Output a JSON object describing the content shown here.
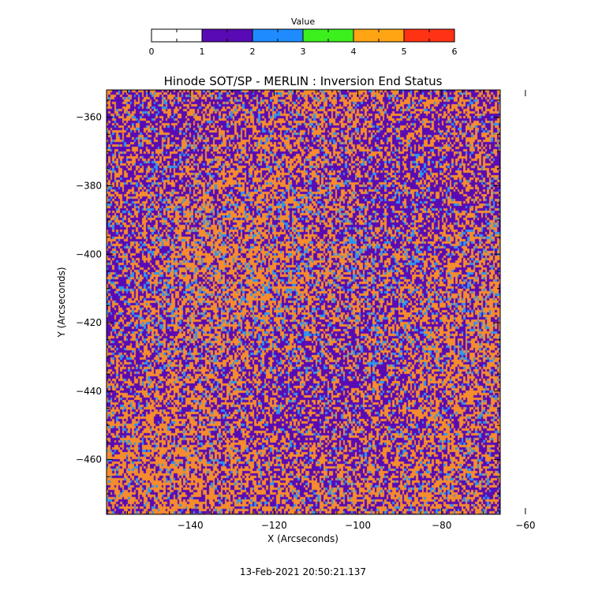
{
  "chart_data": {
    "type": "heatmap",
    "title": "Hinode SOT/SP - MERLIN : Inversion End Status",
    "xlabel": "X (Arcseconds)",
    "ylabel": "Y (Arcseconds)",
    "xlim": [
      -160,
      -66
    ],
    "ylim": [
      -476,
      -352
    ],
    "x_ticks": [
      -140,
      -120,
      -100,
      -80,
      -60
    ],
    "y_ticks": [
      -360,
      -380,
      -400,
      -420,
      -440,
      -460
    ],
    "x_tick_labels": [
      "−140",
      "−120",
      "−100",
      "−80",
      "−60"
    ],
    "y_tick_labels": [
      "−360",
      "−380",
      "−400",
      "−420",
      "−440",
      "−460"
    ],
    "dominant_values": [
      {
        "value": 1.5,
        "share": 0.44
      },
      {
        "value": 2.5,
        "share": 0.09
      },
      {
        "value": 4.5,
        "share": 0.47
      }
    ],
    "colorbar": {
      "title": "Value",
      "range": [
        0,
        6
      ],
      "ticks": [
        0,
        1,
        2,
        3,
        4,
        5,
        6
      ],
      "tick_labels": [
        "0",
        "1",
        "2",
        "3",
        "4",
        "5",
        "6"
      ],
      "bins": [
        {
          "range": [
            0,
            1
          ],
          "color": "#ffffff"
        },
        {
          "range": [
            1,
            2
          ],
          "color": "#5a0ab4"
        },
        {
          "range": [
            2,
            3
          ],
          "color": "#1e8cff"
        },
        {
          "range": [
            3,
            4
          ],
          "color": "#3cf01e"
        },
        {
          "range": [
            4,
            5
          ],
          "color": "#ffa514"
        },
        {
          "range": [
            5,
            6
          ],
          "color": "#ff3214"
        }
      ]
    },
    "colors": {
      "purple": "#5a0ab4",
      "blue": "#2d96f0",
      "orange": "#f58c2d"
    }
  },
  "footer": {
    "timestamp": "13-Feb-2021 20:50:21.137"
  }
}
